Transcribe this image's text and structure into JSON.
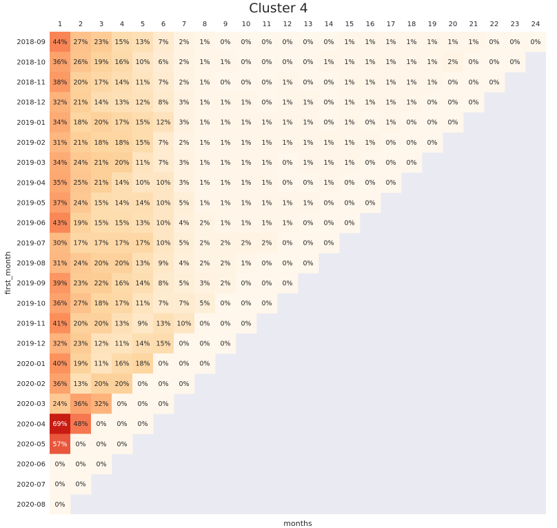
{
  "chart_data": {
    "type": "heatmap",
    "title": "Cluster 4",
    "xlabel": "months",
    "ylabel": "first_month",
    "x": [
      "1",
      "2",
      "3",
      "4",
      "5",
      "6",
      "7",
      "8",
      "9",
      "10",
      "11",
      "12",
      "13",
      "14",
      "15",
      "16",
      "17",
      "18",
      "19",
      "20",
      "21",
      "22",
      "23",
      "24"
    ],
    "y": [
      "2018-09",
      "2018-10",
      "2018-11",
      "2018-12",
      "2019-01",
      "2019-02",
      "2019-03",
      "2019-04",
      "2019-05",
      "2019-06",
      "2019-07",
      "2019-08",
      "2019-09",
      "2019-10",
      "2019-11",
      "2019-12",
      "2020-01",
      "2020-02",
      "2020-03",
      "2020-04",
      "2020-05",
      "2020-06",
      "2020-07",
      "2020-08"
    ],
    "values": [
      [
        44,
        27,
        23,
        15,
        13,
        7,
        2,
        1,
        0,
        0,
        0,
        0,
        0,
        0,
        1,
        1,
        1,
        1,
        1,
        1,
        1,
        0,
        0,
        0
      ],
      [
        36,
        26,
        19,
        16,
        10,
        6,
        2,
        1,
        1,
        0,
        0,
        0,
        0,
        1,
        1,
        1,
        1,
        1,
        1,
        2,
        0,
        0,
        0
      ],
      [
        38,
        20,
        17,
        14,
        11,
        7,
        2,
        1,
        0,
        0,
        0,
        1,
        0,
        0,
        1,
        1,
        1,
        1,
        1,
        0,
        0,
        0
      ],
      [
        32,
        21,
        14,
        13,
        12,
        8,
        3,
        1,
        1,
        1,
        0,
        1,
        1,
        0,
        1,
        1,
        1,
        1,
        0,
        0,
        0
      ],
      [
        34,
        18,
        20,
        17,
        15,
        12,
        3,
        1,
        1,
        1,
        1,
        1,
        1,
        0,
        1,
        0,
        1,
        0,
        0,
        0
      ],
      [
        31,
        21,
        18,
        18,
        15,
        7,
        2,
        1,
        1,
        1,
        1,
        1,
        1,
        1,
        1,
        1,
        0,
        0,
        0
      ],
      [
        34,
        24,
        21,
        20,
        11,
        7,
        3,
        1,
        1,
        1,
        1,
        0,
        1,
        1,
        1,
        0,
        0,
        0
      ],
      [
        35,
        25,
        21,
        14,
        10,
        10,
        3,
        1,
        1,
        1,
        1,
        0,
        0,
        1,
        0,
        0,
        0
      ],
      [
        37,
        24,
        15,
        14,
        14,
        10,
        5,
        1,
        1,
        1,
        1,
        1,
        1,
        0,
        0,
        0
      ],
      [
        43,
        19,
        15,
        15,
        13,
        10,
        4,
        2,
        1,
        1,
        1,
        1,
        0,
        0,
        0
      ],
      [
        30,
        17,
        17,
        17,
        17,
        10,
        5,
        2,
        2,
        2,
        2,
        0,
        0,
        0
      ],
      [
        31,
        24,
        20,
        20,
        13,
        9,
        4,
        2,
        2,
        1,
        0,
        0,
        0
      ],
      [
        39,
        23,
        22,
        16,
        14,
        8,
        5,
        3,
        2,
        0,
        0,
        0
      ],
      [
        36,
        27,
        18,
        17,
        11,
        7,
        7,
        5,
        0,
        0,
        0
      ],
      [
        41,
        20,
        20,
        13,
        9,
        13,
        10,
        0,
        0,
        0
      ],
      [
        32,
        23,
        12,
        11,
        14,
        15,
        0,
        0,
        0
      ],
      [
        40,
        19,
        11,
        16,
        18,
        0,
        0,
        0
      ],
      [
        36,
        13,
        20,
        20,
        0,
        0,
        0
      ],
      [
        24,
        36,
        32,
        0,
        0,
        0
      ],
      [
        69,
        48,
        0,
        0,
        0
      ],
      [
        57,
        0,
        0,
        0
      ],
      [
        0,
        0,
        0
      ],
      [
        0,
        0
      ],
      [
        0
      ]
    ],
    "value_suffix": "%",
    "colormap": "OrRd",
    "empty_color": "#eaeaf2"
  }
}
